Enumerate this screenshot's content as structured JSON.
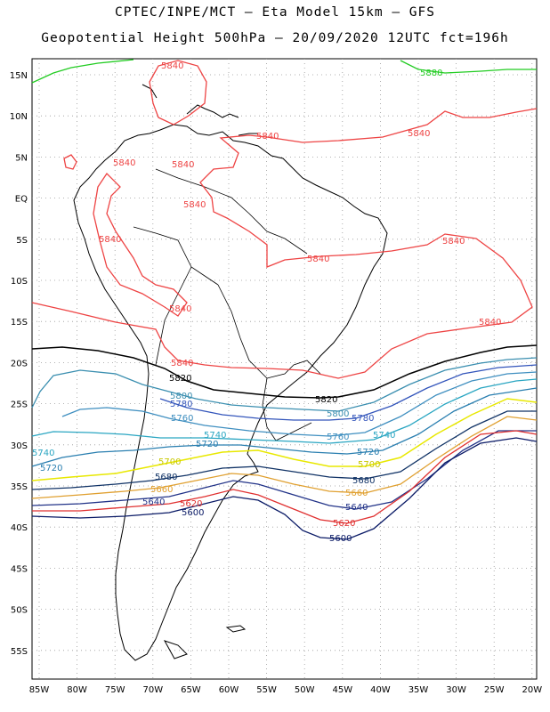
{
  "header": {
    "line1": "CPTEC/INPE/MCT –  Eta Model 15km – GFS",
    "line2": "Geopotential Height 500hPa – 20/09/2020 12UTC fct=196h"
  },
  "map": {
    "lon_labels": [
      "85W",
      "80W",
      "75W",
      "70W",
      "65W",
      "60W",
      "55W",
      "50W",
      "45W",
      "40W",
      "35W",
      "30W",
      "25W",
      "20W"
    ],
    "lat_labels": [
      "15N",
      "10N",
      "5N",
      "EQ",
      "5S",
      "10S",
      "15S",
      "20S",
      "25S",
      "30S",
      "35S",
      "40S",
      "45S",
      "50S",
      "55S"
    ],
    "land_color": "#000000",
    "grid": "dotted"
  },
  "contours": [
    {
      "value": "5880",
      "color": "#22cc22"
    },
    {
      "value": "5840",
      "color": "#ee4444"
    },
    {
      "value": "5820",
      "color": "#000000"
    },
    {
      "value": "5800",
      "color": "#3b8fb0"
    },
    {
      "value": "5780",
      "color": "#3355bb"
    },
    {
      "value": "5760",
      "color": "#3f8fc0"
    },
    {
      "value": "5740",
      "color": "#2aa6c2"
    },
    {
      "value": "5720",
      "color": "#2a7fb0"
    },
    {
      "value": "5700",
      "color": "#e8e800"
    },
    {
      "value": "5680",
      "color": "#113366"
    },
    {
      "value": "5660",
      "color": "#e0a030"
    },
    {
      "value": "5640",
      "color": "#223388"
    },
    {
      "value": "5620",
      "color": "#e03030"
    },
    {
      "value": "5600",
      "color": "#0a1a66"
    }
  ],
  "labels": {
    "l5880": "5880",
    "l5840a": "5840",
    "l5840b": "5840",
    "l5840c": "5840",
    "l5840d": "5840",
    "l5840e": "5840",
    "l5840f": "5840",
    "l5840g": "5840",
    "l5840h": "5840",
    "l5840i": "5840",
    "l5840j": "5840",
    "l5840k": "5840",
    "l5840l": "5840",
    "l5820": "5820",
    "l5820b": "5820",
    "l5800": "5800",
    "l5800b": "5800",
    "l5780": "5780",
    "l5780b": "5780",
    "l5760": "5760",
    "l5760b": "5760",
    "l5740": "5740",
    "l5740b": "5740",
    "l5740c": "5740",
    "l5720": "5720",
    "l5720b": "5720",
    "l5720c": "5720",
    "l5700": "5700",
    "l5700b": "5700",
    "l5680": "5680",
    "l5680b": "5680",
    "l5660": "5660",
    "l5660b": "5660",
    "l5640": "5640",
    "l5640b": "5640",
    "l5620": "5620",
    "l5620b": "5620",
    "l5600": "5600",
    "l5600b": "5600"
  }
}
